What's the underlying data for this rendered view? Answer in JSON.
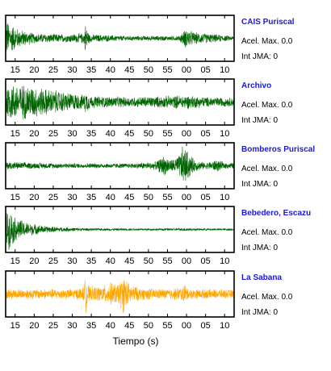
{
  "chart_data": {
    "type": "line",
    "xlabel": "Tiempo (s)",
    "tick_labels": [
      "15",
      "20",
      "25",
      "30",
      "35",
      "40",
      "45",
      "50",
      "55",
      "00",
      "05",
      "10"
    ],
    "x_range_seconds": [
      12.5,
      72.5
    ],
    "tick_values_seconds": [
      15,
      20,
      25,
      30,
      35,
      40,
      45,
      50,
      55,
      60,
      65,
      70
    ],
    "grid": false,
    "panels": [
      {
        "station": "CAIS Puriscal",
        "acel_label": "Acel. Max. 0.0",
        "jma_label": "Int JMA: 0",
        "color": "#006400",
        "envelope": [
          [
            12.5,
            0.95
          ],
          [
            14,
            0.7
          ],
          [
            16,
            0.45
          ],
          [
            20,
            0.25
          ],
          [
            28,
            0.2
          ],
          [
            33,
            0.25
          ],
          [
            33.5,
            0.75
          ],
          [
            34.5,
            0.2
          ],
          [
            45,
            0.12
          ],
          [
            58,
            0.12
          ],
          [
            60,
            0.5
          ],
          [
            62,
            0.3
          ],
          [
            65,
            0.25
          ],
          [
            72.5,
            0.1
          ]
        ]
      },
      {
        "station": "Archivo",
        "acel_label": "Acel. Max. 0.0",
        "jma_label": "Int JMA: 0",
        "color": "#006400",
        "envelope": [
          [
            12.5,
            0.9
          ],
          [
            14,
            0.9
          ],
          [
            18,
            0.85
          ],
          [
            22,
            0.7
          ],
          [
            28,
            0.5
          ],
          [
            33,
            0.35
          ],
          [
            33.5,
            0.55
          ],
          [
            35,
            0.3
          ],
          [
            45,
            0.25
          ],
          [
            55,
            0.3
          ],
          [
            60,
            0.35
          ],
          [
            65,
            0.25
          ],
          [
            72.5,
            0.22
          ]
        ]
      },
      {
        "station": "Bomberos Puriscal",
        "acel_label": "Acel. Max. 0.0",
        "jma_label": "Int JMA: 0",
        "color": "#006400",
        "envelope": [
          [
            12.5,
            0.2
          ],
          [
            20,
            0.15
          ],
          [
            30,
            0.12
          ],
          [
            45,
            0.12
          ],
          [
            52,
            0.2
          ],
          [
            54,
            0.5
          ],
          [
            56,
            0.3
          ],
          [
            58,
            0.5
          ],
          [
            59,
            0.98
          ],
          [
            60,
            0.8
          ],
          [
            62,
            0.3
          ],
          [
            65,
            0.15
          ],
          [
            68,
            0.3
          ],
          [
            70,
            0.15
          ],
          [
            72.5,
            0.15
          ]
        ]
      },
      {
        "station": "Bebedero, Escazu",
        "acel_label": "Acel. Max. 0.0",
        "jma_label": "Int JMA: 0",
        "color": "#006400",
        "envelope": [
          [
            12.5,
            0.9
          ],
          [
            13.5,
            0.95
          ],
          [
            15,
            0.6
          ],
          [
            18,
            0.35
          ],
          [
            22,
            0.2
          ],
          [
            26,
            0.12
          ],
          [
            35,
            0.06
          ],
          [
            50,
            0.05
          ],
          [
            58,
            0.06
          ],
          [
            60,
            0.09
          ],
          [
            62,
            0.05
          ],
          [
            72.5,
            0.05
          ]
        ]
      },
      {
        "station": "La Sabana",
        "acel_label": "Acel. Max. 0.0",
        "jma_label": "Int JMA: 0",
        "color": "#FFA500",
        "envelope": [
          [
            12.5,
            0.25
          ],
          [
            30,
            0.25
          ],
          [
            33,
            0.35
          ],
          [
            33.5,
            0.9
          ],
          [
            34.5,
            0.35
          ],
          [
            38,
            0.4
          ],
          [
            40,
            0.55
          ],
          [
            42,
            0.5
          ],
          [
            43.5,
            0.95
          ],
          [
            45,
            0.5
          ],
          [
            48,
            0.3
          ],
          [
            55,
            0.25
          ],
          [
            59,
            0.35
          ],
          [
            59.5,
            0.55
          ],
          [
            60.5,
            0.25
          ],
          [
            72.5,
            0.22
          ]
        ]
      }
    ]
  }
}
